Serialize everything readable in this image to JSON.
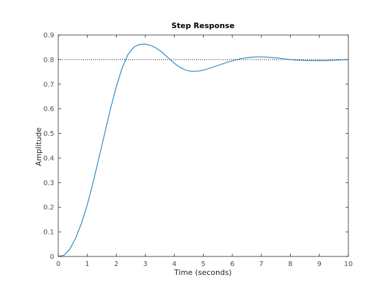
{
  "chart_data": {
    "type": "line",
    "title": "Step Response",
    "xlabel": "Time (seconds)",
    "ylabel": "Amplitude",
    "xlim": [
      0,
      10
    ],
    "ylim": [
      0,
      0.9
    ],
    "x_ticks": [
      "0",
      "1",
      "2",
      "3",
      "4",
      "5",
      "6",
      "7",
      "8",
      "9",
      "10"
    ],
    "y_ticks": [
      "0",
      "0.1",
      "0.2",
      "0.3",
      "0.4",
      "0.5",
      "0.6",
      "0.7",
      "0.8",
      "0.9"
    ],
    "grid": false,
    "reference_line": {
      "y": 0.8,
      "style": "dotted"
    },
    "line_color": "#0072bd",
    "series": [
      {
        "x": [
          0,
          0.2,
          0.4,
          0.6,
          0.8,
          1.0,
          1.2,
          1.4,
          1.6,
          1.8,
          2.0,
          2.2,
          2.4,
          2.6,
          2.8,
          3.0,
          3.2,
          3.4,
          3.6,
          3.8,
          4.0,
          4.2,
          4.4,
          4.6,
          4.8,
          5.0,
          5.2,
          5.4,
          5.6,
          5.8,
          6.0,
          6.2,
          6.4,
          6.6,
          6.8,
          7.0,
          7.2,
          7.4,
          7.6,
          7.8,
          8.0,
          8.2,
          8.4,
          8.6,
          8.8,
          9.0,
          9.2,
          9.4,
          9.6,
          9.8,
          10.0
        ],
        "y": [
          0,
          0.005,
          0.03,
          0.075,
          0.135,
          0.21,
          0.3,
          0.4,
          0.5,
          0.6,
          0.69,
          0.765,
          0.82,
          0.85,
          0.862,
          0.863,
          0.857,
          0.845,
          0.828,
          0.806,
          0.785,
          0.768,
          0.757,
          0.752,
          0.753,
          0.757,
          0.764,
          0.772,
          0.78,
          0.788,
          0.795,
          0.801,
          0.806,
          0.809,
          0.811,
          0.811,
          0.81,
          0.808,
          0.806,
          0.803,
          0.8,
          0.798,
          0.797,
          0.796,
          0.796,
          0.796,
          0.796,
          0.797,
          0.798,
          0.799,
          0.8
        ]
      }
    ]
  }
}
